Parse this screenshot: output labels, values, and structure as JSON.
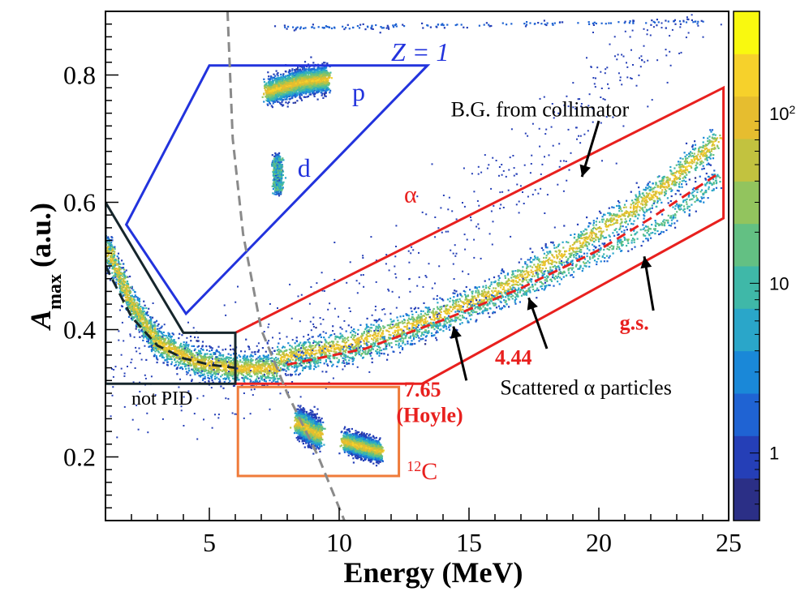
{
  "chart_data": {
    "type": "scatter",
    "subtype": "2d-histogram",
    "title": "",
    "xlabel": "Energy (MeV)",
    "ylabel": "A",
    "ylabel_subscript": "max",
    "ylabel_suffix": "(a.u.)",
    "xlim": [
      1,
      25
    ],
    "ylim": [
      0.1,
      0.9
    ],
    "xticks": [
      5,
      10,
      15,
      20,
      25
    ],
    "yticks": [
      0.2,
      0.4,
      0.6,
      0.8
    ],
    "colorbar": {
      "scale": "log",
      "range": [
        0.4,
        400
      ],
      "tick_labels": [
        {
          "value": 1,
          "label": "1"
        },
        {
          "value": 10,
          "label": "10"
        },
        {
          "value": 100,
          "label": "10",
          "sup": "2"
        }
      ],
      "colors": [
        "#2b2f86",
        "#253fb7",
        "#1f63d3",
        "#1a88d8",
        "#2aa6c9",
        "#3fb8a8",
        "#63c083",
        "#92c45e",
        "#c2c23f",
        "#e6bd2f",
        "#f6d12b",
        "#f9f90f"
      ]
    },
    "loci": [
      {
        "name": "alpha-band",
        "points": [
          [
            7.6,
            0.355
          ],
          [
            10,
            0.375
          ],
          [
            13,
            0.41
          ],
          [
            16,
            0.46
          ],
          [
            19,
            0.53
          ],
          [
            22,
            0.61
          ],
          [
            24.6,
            0.7
          ]
        ],
        "width": 0.012,
        "density": "high"
      },
      {
        "name": "scattered-alpha",
        "points": [
          [
            8,
            0.345
          ],
          [
            11,
            0.365
          ],
          [
            14,
            0.41
          ],
          [
            17,
            0.46
          ],
          [
            20,
            0.52
          ],
          [
            22.5,
            0.57
          ],
          [
            24.6,
            0.64
          ]
        ],
        "width": 0.008,
        "density": "medium"
      },
      {
        "name": "low-energy-band",
        "points": [
          [
            1,
            0.53
          ],
          [
            2,
            0.44
          ],
          [
            3,
            0.38
          ],
          [
            4.5,
            0.35
          ],
          [
            6,
            0.34
          ],
          [
            7.6,
            0.34
          ]
        ],
        "width": 0.012,
        "density": "high"
      },
      {
        "name": "proton-cluster",
        "points": [
          [
            7.2,
            0.775
          ],
          [
            8.5,
            0.79
          ],
          [
            9.5,
            0.795
          ]
        ],
        "width": 0.01,
        "density": "high"
      },
      {
        "name": "deuteron-cluster",
        "points": [
          [
            7.6,
            0.67
          ],
          [
            7.6,
            0.62
          ]
        ],
        "width": 0.004,
        "density": "medium"
      },
      {
        "name": "carbon-cluster-1",
        "points": [
          [
            8.4,
            0.255
          ],
          [
            9.2,
            0.235
          ]
        ],
        "width": 0.01,
        "density": "high"
      },
      {
        "name": "carbon-cluster-2",
        "points": [
          [
            10.2,
            0.225
          ],
          [
            11.5,
            0.21
          ]
        ],
        "width": 0.008,
        "density": "high"
      },
      {
        "name": "bg-top",
        "points": [
          [
            7.5,
            0.875
          ],
          [
            12,
            0.878
          ],
          [
            18,
            0.882
          ],
          [
            24,
            0.885
          ]
        ],
        "width": 0.002,
        "density": "low"
      }
    ],
    "peaks": [
      {
        "label": "7.65 (Hoyle)",
        "x": 14.3,
        "y": 0.415
      },
      {
        "label": "4.44",
        "x": 17.4,
        "y": 0.47
      },
      {
        "label": "g.s.",
        "x": 21.6,
        "y": 0.56
      }
    ],
    "cuts": [
      {
        "label": "Z = 1",
        "color": "#2233dd",
        "vertices": [
          [
            1.8,
            0.565
          ],
          [
            5,
            0.815
          ],
          [
            13.4,
            0.815
          ],
          [
            4.1,
            0.425
          ]
        ]
      },
      {
        "label": "α",
        "color": "#e8201e",
        "vertices": [
          [
            6,
            0.315
          ],
          [
            6,
            0.395
          ],
          [
            24.8,
            0.78
          ],
          [
            24.8,
            0.575
          ],
          [
            13.2,
            0.315
          ]
        ]
      },
      {
        "label": "not PID",
        "color": "#16262c",
        "vertices": [
          [
            1,
            0.6
          ],
          [
            1,
            0.315
          ],
          [
            6,
            0.315
          ],
          [
            6,
            0.395
          ],
          [
            4,
            0.395
          ],
          [
            1,
            0.6
          ]
        ]
      },
      {
        "label": "12C",
        "color": "#ef7b3a",
        "vertices": [
          [
            6.1,
            0.17
          ],
          [
            6.1,
            0.31
          ],
          [
            12.3,
            0.31
          ],
          [
            12.3,
            0.17
          ]
        ]
      }
    ],
    "dashed_lines": [
      {
        "name": "black-dashed",
        "color": "#16262c",
        "points": [
          [
            1,
            0.5
          ],
          [
            2,
            0.42
          ],
          [
            3,
            0.375
          ],
          [
            4,
            0.355
          ],
          [
            5,
            0.345
          ],
          [
            6,
            0.34
          ]
        ]
      },
      {
        "name": "red-dashed",
        "color": "#e8201e",
        "points": [
          [
            8,
            0.345
          ],
          [
            11,
            0.37
          ],
          [
            14,
            0.415
          ],
          [
            17,
            0.465
          ],
          [
            20,
            0.525
          ],
          [
            22,
            0.575
          ],
          [
            24.6,
            0.645
          ]
        ]
      },
      {
        "name": "grey-dashed",
        "color": "#8a8a8a",
        "points": [
          [
            5.7,
            0.9
          ],
          [
            5.9,
            0.7
          ],
          [
            6.3,
            0.55
          ],
          [
            7,
            0.4
          ],
          [
            8,
            0.3
          ],
          [
            9.2,
            0.2
          ],
          [
            10.2,
            0.1
          ]
        ]
      }
    ],
    "annotations": {
      "z1": {
        "text": "Z = 1",
        "x": 12,
        "y": 0.822
      },
      "p": {
        "text": "p",
        "x": 10.5,
        "y": 0.76
      },
      "d": {
        "text": "d",
        "x": 8.4,
        "y": 0.64
      },
      "alpha": {
        "text": "α",
        "x": 12.5,
        "y": 0.6
      },
      "bg": {
        "text": "B.G. from collimator",
        "x": 14.3,
        "y": 0.735
      },
      "gs": {
        "text": "g.s.",
        "x": 20.8,
        "y": 0.4
      },
      "e444": {
        "text": "4.44",
        "x": 16,
        "y": 0.345
      },
      "e765": {
        "text": "7.65",
        "x": 12.5,
        "y": 0.295
      },
      "hoyle": {
        "text": "(Hoyle)",
        "x": 12.2,
        "y": 0.255
      },
      "scattered": {
        "text": "Scattered α particles",
        "x": 16.2,
        "y": 0.298
      },
      "notpid": {
        "text": "not PID",
        "x": 2.0,
        "y": 0.282
      },
      "c12": {
        "text": "C",
        "sup": "12",
        "x": 12.6,
        "y": 0.165
      }
    },
    "arrows": [
      {
        "name": "bg-arrow",
        "from": [
          20,
          0.728
        ],
        "to": [
          19.35,
          0.64
        ]
      },
      {
        "name": "gs-arrow",
        "from": [
          22.1,
          0.43
        ],
        "to": [
          21.75,
          0.515
        ]
      },
      {
        "name": "e444-arrow",
        "from": [
          18,
          0.37
        ],
        "to": [
          17.3,
          0.45
        ]
      },
      {
        "name": "e765-arrow",
        "from": [
          14.9,
          0.32
        ],
        "to": [
          14.4,
          0.405
        ]
      }
    ]
  }
}
